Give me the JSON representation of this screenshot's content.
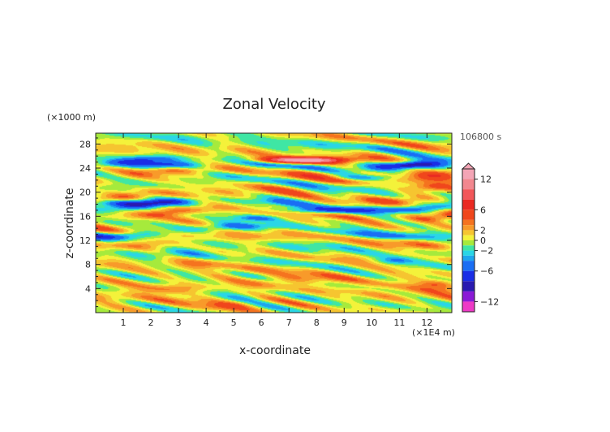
{
  "chart_data": {
    "type": "heatmap",
    "title": "Zonal Velocity",
    "xlabel": "x-coordinate",
    "ylabel": "z-coordinate",
    "x_unit_label": "(×1E4 m)",
    "y_unit_label": "(×1000 m)",
    "time_label": "106800 s",
    "xlim": [
      0,
      12.9
    ],
    "ylim": [
      0,
      29.8
    ],
    "x_ticks": [
      1,
      2,
      3,
      4,
      5,
      6,
      7,
      8,
      9,
      10,
      11,
      12
    ],
    "y_ticks": [
      4,
      8,
      12,
      16,
      20,
      24,
      28
    ],
    "colorbar": {
      "tick_labels": [
        {
          "value": 12,
          "label": "12"
        },
        {
          "value": 6,
          "label": "6"
        },
        {
          "value": 2,
          "label": "2"
        },
        {
          "value": 0,
          "label": "0"
        },
        {
          "value": -2,
          "label": "−2"
        },
        {
          "value": -6,
          "label": "−6"
        },
        {
          "value": -12,
          "label": "−12"
        }
      ],
      "levels": [
        {
          "lo": 12,
          "hi": 14,
          "color": "#f4a5b6"
        },
        {
          "lo": 10,
          "hi": 12,
          "color": "#f2878f"
        },
        {
          "lo": 8,
          "hi": 10,
          "color": "#f2575a"
        },
        {
          "lo": 6,
          "hi": 8,
          "color": "#ea2a22"
        },
        {
          "lo": 4,
          "hi": 6,
          "color": "#f0461c"
        },
        {
          "lo": 3,
          "hi": 4,
          "color": "#f5731f"
        },
        {
          "lo": 2,
          "hi": 3,
          "color": "#f89a2a"
        },
        {
          "lo": 1,
          "hi": 2,
          "color": "#f6c530"
        },
        {
          "lo": 0,
          "hi": 1,
          "color": "#f4f23a"
        },
        {
          "lo": -1,
          "hi": 0,
          "color": "#a6ea3c"
        },
        {
          "lo": -2,
          "hi": -1,
          "color": "#3fe6a4"
        },
        {
          "lo": -3,
          "hi": -2,
          "color": "#2ad6e6"
        },
        {
          "lo": -4,
          "hi": -3,
          "color": "#1ea6ee"
        },
        {
          "lo": -6,
          "hi": -4,
          "color": "#1a6ef4"
        },
        {
          "lo": -8,
          "hi": -6,
          "color": "#1a2ee6"
        },
        {
          "lo": -10,
          "hi": -8,
          "color": "#2a1ab0"
        },
        {
          "lo": -12,
          "hi": -10,
          "color": "#8a1ad6"
        },
        {
          "lo": -14,
          "hi": -12,
          "color": "#ee3ac6"
        }
      ]
    },
    "field_bands": [
      {
        "z": 1.5,
        "amp": 1.5,
        "halfwidth": 0.7
      },
      {
        "z": 3.0,
        "amp": 0.6,
        "halfwidth": 0.9
      },
      {
        "z": 4.6,
        "amp": 3.2,
        "halfwidth": 0.9
      },
      {
        "z": 6.5,
        "amp": 0.5,
        "halfwidth": 1.2
      },
      {
        "z": 8.3,
        "amp": 1.4,
        "halfwidth": 0.9
      },
      {
        "z": 10.2,
        "amp": -1.6,
        "halfwidth": 0.9
      },
      {
        "z": 12.0,
        "amp": 2.4,
        "halfwidth": 0.8
      },
      {
        "z": 13.5,
        "amp": -4.5,
        "halfwidth": 0.6
      },
      {
        "z": 15.0,
        "amp": 0.8,
        "halfwidth": 0.6
      },
      {
        "z": 16.4,
        "amp": 4.0,
        "halfwidth": 0.7
      },
      {
        "z": 17.9,
        "amp": -5.0,
        "halfwidth": 0.6
      },
      {
        "z": 19.4,
        "amp": 3.6,
        "halfwidth": 0.7
      },
      {
        "z": 21.0,
        "amp": -1.5,
        "halfwidth": 0.7
      },
      {
        "z": 22.8,
        "amp": 4.2,
        "halfwidth": 0.8
      },
      {
        "z": 24.7,
        "amp": -4.8,
        "halfwidth": 0.6
      },
      {
        "z": 26.6,
        "amp": 1.2,
        "halfwidth": 0.8
      },
      {
        "z": 28.8,
        "amp": -0.8,
        "halfwidth": 0.8
      }
    ],
    "field_features": [
      {
        "x": 7.5,
        "z": 25.3,
        "amp": 13.5,
        "rx": 1.6,
        "rz": 0.55
      },
      {
        "x": 8.6,
        "z": 17.0,
        "amp": -6.5,
        "rx": 1.9,
        "rz": 0.55
      },
      {
        "x": 11.5,
        "z": 24.5,
        "amp": -6.0,
        "rx": 1.3,
        "rz": 0.5
      },
      {
        "x": 12.2,
        "z": 20.8,
        "amp": 6.0,
        "rx": 1.0,
        "rz": 0.8
      },
      {
        "x": 2.4,
        "z": 24.5,
        "amp": -6.0,
        "rx": 1.5,
        "rz": 0.6
      },
      {
        "x": 1.2,
        "z": 18.2,
        "amp": -6.0,
        "rx": 1.4,
        "rz": 0.6
      },
      {
        "x": 5.8,
        "z": 15.7,
        "amp": -4.0,
        "rx": 0.9,
        "rz": 0.5
      },
      {
        "x": 9.6,
        "z": 22.4,
        "amp": -4.0,
        "rx": 1.4,
        "rz": 0.5
      },
      {
        "x": 10.8,
        "z": 8.6,
        "amp": -3.0,
        "rx": 0.7,
        "rz": 0.6
      },
      {
        "x": 12.4,
        "z": 4.8,
        "amp": 2.5,
        "rx": 0.6,
        "rz": 0.6
      }
    ]
  }
}
